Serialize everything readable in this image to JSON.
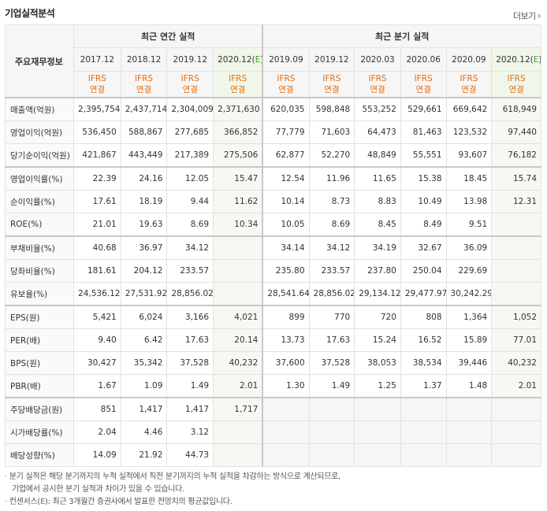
{
  "title": "기업실적분석",
  "more_label": "더보기",
  "header": {
    "row_label": "주요재무정보",
    "annual_group": "최근 연간 실적",
    "quarter_group": "최근 분기 실적",
    "annual_periods": [
      "2017.12",
      "2018.12",
      "2019.12",
      "2020.12(E)"
    ],
    "quarter_periods": [
      "2019.09",
      "2019.12",
      "2020.03",
      "2020.06",
      "2020.09",
      "2020.12(E)"
    ],
    "ifrs_top": "IFRS",
    "ifrs_bottom": "연결"
  },
  "rows": [
    {
      "label": "매출액(억원)",
      "annual": [
        "2,395,754",
        "2,437,714",
        "2,304,009",
        "2,371,630"
      ],
      "quarter": [
        "620,035",
        "598,848",
        "553,252",
        "529,661",
        "669,642",
        "618,949"
      ]
    },
    {
      "label": "영업이익(억원)",
      "annual": [
        "536,450",
        "588,867",
        "277,685",
        "366,852"
      ],
      "quarter": [
        "77,779",
        "71,603",
        "64,473",
        "81,463",
        "123,532",
        "97,440"
      ]
    },
    {
      "label": "당기순이익(억원)",
      "annual": [
        "421,867",
        "443,449",
        "217,389",
        "275,506"
      ],
      "quarter": [
        "62,877",
        "52,270",
        "48,849",
        "55,551",
        "93,607",
        "76,182"
      ]
    },
    {
      "label": "영업이익률(%)",
      "annual": [
        "22.39",
        "24.16",
        "12.05",
        "15.47"
      ],
      "quarter": [
        "12.54",
        "11.96",
        "11.65",
        "15.38",
        "18.45",
        "15.74"
      ]
    },
    {
      "label": "순이익률(%)",
      "annual": [
        "17.61",
        "18.19",
        "9.44",
        "11.62"
      ],
      "quarter": [
        "10.14",
        "8.73",
        "8.83",
        "10.49",
        "13.98",
        "12.31"
      ]
    },
    {
      "label": "ROE(%)",
      "annual": [
        "21.01",
        "19.63",
        "8.69",
        "10.34"
      ],
      "quarter": [
        "10.05",
        "8.69",
        "8.45",
        "8.49",
        "9.51",
        ""
      ]
    },
    {
      "label": "부채비율(%)",
      "annual": [
        "40.68",
        "36.97",
        "34.12",
        ""
      ],
      "quarter": [
        "34.14",
        "34.12",
        "34.19",
        "32.67",
        "36.09",
        ""
      ]
    },
    {
      "label": "당좌비율(%)",
      "annual": [
        "181.61",
        "204.12",
        "233.57",
        ""
      ],
      "quarter": [
        "235.80",
        "233.57",
        "237.80",
        "250.04",
        "229.69",
        ""
      ]
    },
    {
      "label": "유보율(%)",
      "annual": [
        "24,536.12",
        "27,531.92",
        "28,856.02",
        ""
      ],
      "quarter": [
        "28,541.64",
        "28,856.02",
        "29,134.12",
        "29,477.97",
        "30,242.29",
        ""
      ]
    },
    {
      "label": "EPS(원)",
      "annual": [
        "5,421",
        "6,024",
        "3,166",
        "4,021"
      ],
      "quarter": [
        "899",
        "770",
        "720",
        "808",
        "1,364",
        "1,052"
      ]
    },
    {
      "label": "PER(배)",
      "annual": [
        "9.40",
        "6.42",
        "17.63",
        "20.14"
      ],
      "quarter": [
        "13.73",
        "17.63",
        "15.24",
        "16.52",
        "15.89",
        "77.01"
      ]
    },
    {
      "label": "BPS(원)",
      "annual": [
        "30,427",
        "35,342",
        "37,528",
        "40,232"
      ],
      "quarter": [
        "37,600",
        "37,528",
        "38,053",
        "38,534",
        "39,446",
        "40,232"
      ]
    },
    {
      "label": "PBR(배)",
      "annual": [
        "1.67",
        "1.09",
        "1.49",
        "2.01"
      ],
      "quarter": [
        "1.30",
        "1.49",
        "1.25",
        "1.37",
        "1.48",
        "2.01"
      ]
    },
    {
      "label": "주당배당금(원)",
      "annual": [
        "851",
        "1,417",
        "1,417",
        "1,717"
      ],
      "quarter": [
        "",
        "",
        "",
        "",
        "",
        ""
      ]
    },
    {
      "label": "시가배당률(%)",
      "annual": [
        "2.04",
        "4.46",
        "3.12",
        ""
      ],
      "quarter": [
        "",
        "",
        "",
        "",
        "",
        ""
      ]
    },
    {
      "label": "배당성향(%)",
      "annual": [
        "14.09",
        "21.92",
        "44.73",
        ""
      ],
      "quarter": [
        "",
        "",
        "",
        "",
        "",
        ""
      ]
    }
  ],
  "notes": {
    "line1": "분기 실적은 해당 분기까지의 누적 실적에서 직전 분기까지의 누적 실적을 차감하는 방식으로 계산되므로,",
    "line2": "기업에서 공시한 분기 실적과 차이가 있을 수 있습니다.",
    "line3_prefix": "컨센서스(",
    "line3_e": "E",
    "line3_suffix": "): 최근 3개월간 증권사에서 발표한 전망치의 평균값입니다."
  }
}
